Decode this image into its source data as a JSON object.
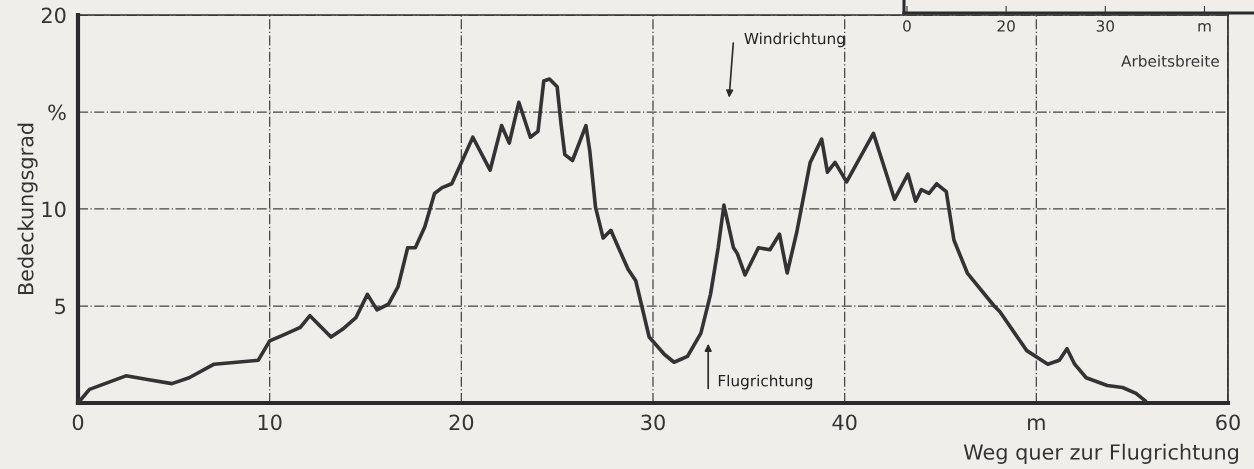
{
  "chart_data": [
    {
      "type": "line",
      "xlabel": "Weg quer zur Flugrichtung",
      "ylabel": "Bedeckungsgrad",
      "xlim": [
        0,
        60
      ],
      "xticks": [
        0,
        10,
        20,
        30,
        40,
        {
          "value": 50,
          "label": "m"
        },
        60
      ],
      "ylim": [
        0,
        20
      ],
      "yticks": [
        {
          "value": 0,
          "label": null
        },
        5,
        10,
        {
          "value": 15,
          "label": "%"
        },
        20
      ],
      "grid": true,
      "marker": "none",
      "line_style": "solid",
      "annotations": [
        "Windrichtung",
        "Flugrichtung"
      ],
      "series": [
        {
          "color": "#333333",
          "x": [
            0,
            0.6,
            2.5,
            3.7,
            4.9,
            5.8,
            7.1,
            9.4,
            10.0,
            10.7,
            11.6,
            12.1,
            13.2,
            13.8,
            14.5,
            15.1,
            15.6,
            16.2,
            16.7,
            17.2,
            17.6,
            18.1,
            18.6,
            19.0,
            19.5,
            20.1,
            20.6,
            21.5,
            22.1,
            22.5,
            23.0,
            23.6,
            24.0,
            24.3,
            24.6,
            25.0,
            25.2,
            25.4,
            25.8,
            26.5,
            26.7,
            27.0,
            27.4,
            27.8,
            28.2,
            28.7,
            29.1,
            29.8,
            30.6,
            31.1,
            31.8,
            32.5,
            33.0,
            33.4,
            33.7,
            34.2,
            34.4,
            34.8,
            35.5,
            36.1,
            36.6,
            37.0,
            37.5,
            38.2,
            38.8,
            39.1,
            39.5,
            40.1,
            41.5,
            42.6,
            43.3,
            43.7,
            44.0,
            44.4,
            44.8,
            45.3,
            45.7,
            46.4,
            47.8,
            48.1,
            49.5,
            50.6,
            51.2,
            51.6,
            52.0,
            52.6,
            53.7,
            54.5,
            55.2,
            55.7
          ],
          "values": [
            0,
            0.7,
            1.4,
            1.2,
            1.0,
            1.3,
            2.0,
            2.2,
            3.2,
            3.5,
            3.9,
            4.5,
            3.4,
            3.8,
            4.4,
            5.6,
            4.8,
            5.1,
            6.0,
            8.0,
            8.0,
            9.1,
            10.8,
            11.1,
            11.3,
            12.6,
            13.7,
            12.0,
            14.3,
            13.4,
            15.5,
            13.7,
            14.0,
            16.6,
            16.7,
            16.3,
            14.4,
            12.8,
            12.5,
            14.3,
            13.0,
            10.1,
            8.5,
            8.9,
            8.0,
            6.9,
            6.3,
            3.4,
            2.5,
            2.1,
            2.4,
            3.6,
            5.6,
            8.0,
            10.2,
            8.0,
            7.7,
            6.6,
            8.0,
            7.9,
            8.7,
            6.7,
            8.8,
            12.4,
            13.6,
            11.9,
            12.4,
            11.4,
            13.9,
            10.5,
            11.8,
            10.4,
            11.0,
            10.8,
            11.3,
            10.9,
            8.4,
            6.7,
            5.0,
            4.7,
            2.7,
            2.0,
            2.2,
            2.8,
            2.0,
            1.3,
            0.9,
            0.8,
            0.5,
            0.1
          ]
        }
      ]
    },
    {
      "type": "other",
      "xlabel": "Arbeitsbreite",
      "categories": [
        "0",
        "20",
        "30",
        "m"
      ]
    }
  ]
}
